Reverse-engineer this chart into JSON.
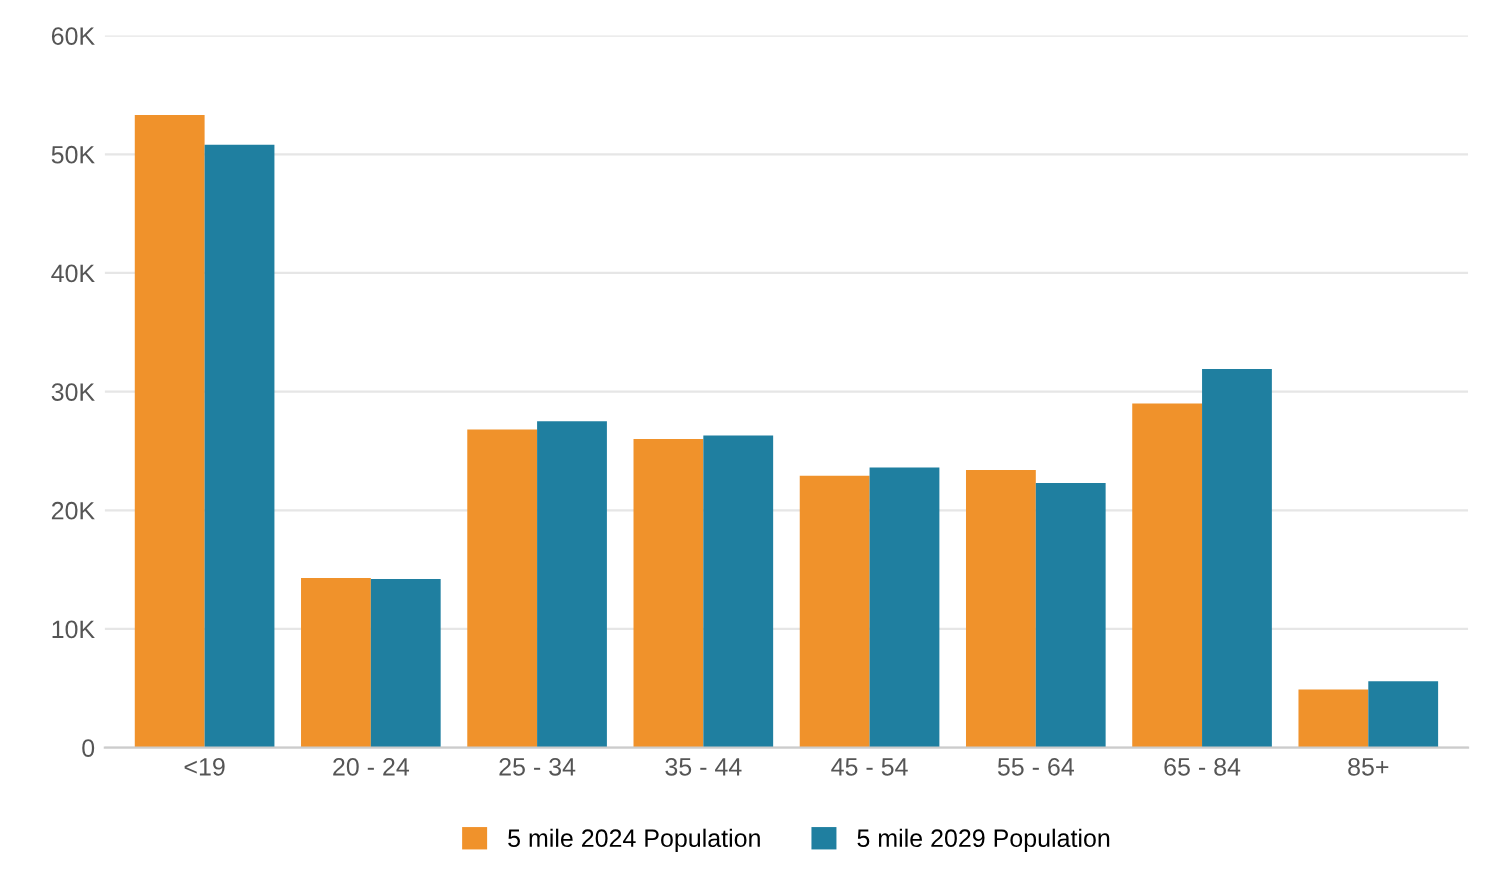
{
  "chart_data": {
    "type": "bar",
    "categories": [
      "<19",
      "20 - 24",
      "25 - 34",
      "35 - 44",
      "45 - 54",
      "55 - 64",
      "65 - 84",
      "85+"
    ],
    "series": [
      {
        "name": "5 mile 2024 Population",
        "color": "#f0922b",
        "values": [
          53300,
          14300,
          26800,
          26000,
          22900,
          23400,
          29000,
          4900
        ]
      },
      {
        "name": "5 mile 2029 Population",
        "color": "#1f7fa0",
        "values": [
          50800,
          14200,
          27500,
          26300,
          23600,
          22300,
          31900,
          5600
        ]
      }
    ],
    "ylim": [
      0,
      60000
    ],
    "yticks": [
      {
        "value": 0,
        "label": "0"
      },
      {
        "value": 10000,
        "label": "10K"
      },
      {
        "value": 20000,
        "label": "20K"
      },
      {
        "value": 30000,
        "label": "30K"
      },
      {
        "value": 40000,
        "label": "40K"
      },
      {
        "value": 50000,
        "label": "50K"
      },
      {
        "value": 60000,
        "label": "60K"
      }
    ],
    "grid": "y",
    "legend": "bottom"
  }
}
